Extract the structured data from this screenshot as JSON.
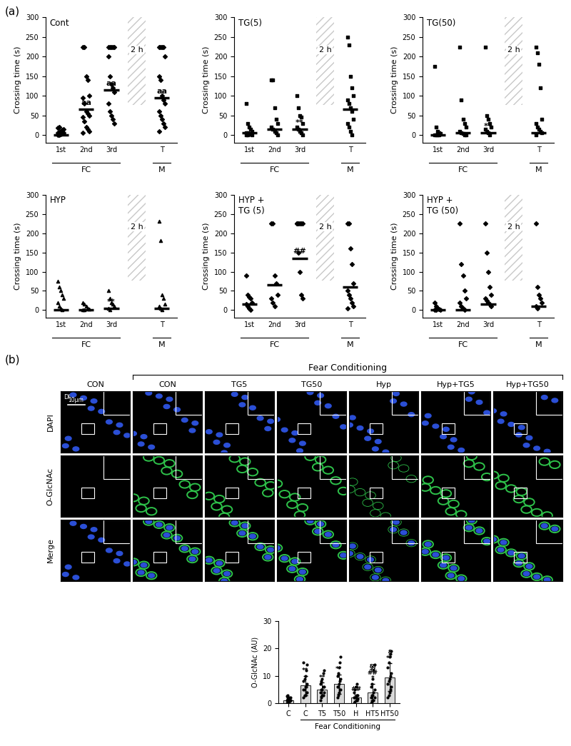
{
  "panel_labels": [
    "(a)",
    "(b)"
  ],
  "chart_data": [
    {
      "type": "scatter",
      "title": "Cont",
      "ylabel": "Crossing time (s)",
      "categories": [
        "1st",
        "2nd",
        "3rd",
        null,
        "T"
      ],
      "points": [
        [
          0,
          0,
          2,
          3,
          5,
          5,
          8,
          10,
          12,
          15,
          18,
          20,
          5,
          3
        ],
        [
          225,
          225,
          150,
          140,
          100,
          95,
          80,
          60,
          55,
          50,
          45,
          35,
          20,
          15,
          10,
          5
        ],
        [
          225,
          225,
          225,
          225,
          225,
          200,
          150,
          130,
          120,
          110,
          80,
          60,
          50,
          40,
          30
        ],
        [],
        [
          225,
          225,
          225,
          225,
          200,
          150,
          140,
          100,
          90,
          80,
          60,
          50,
          40,
          30,
          20,
          10
        ]
      ],
      "means": [
        0,
        65,
        115,
        null,
        95
      ],
      "annotations": [
        null,
        "aa",
        "aa",
        null,
        "aa"
      ],
      "gap_label": "2 h",
      "groups": [
        {
          "label": "FC",
          "categories": [
            "1st",
            "2nd",
            "3rd"
          ]
        },
        {
          "label": "M",
          "categories": [
            "T"
          ]
        }
      ],
      "ylim": [
        -20,
        300
      ],
      "yticks": [
        0,
        50,
        100,
        150,
        200,
        250,
        300
      ],
      "marker": "diamond",
      "color": "#000000"
    },
    {
      "type": "scatter",
      "title": "TG(5)",
      "ylabel": "Crossing time (s)",
      "categories": [
        "1st",
        "2nd",
        "3rd",
        null,
        "T"
      ],
      "points": [
        [
          80,
          30,
          20,
          15,
          10,
          5,
          5,
          3,
          2,
          0,
          0,
          0
        ],
        [
          140,
          140,
          70,
          40,
          30,
          20,
          15,
          10,
          5,
          0
        ],
        [
          100,
          70,
          50,
          45,
          30,
          20,
          15,
          10,
          5,
          0
        ],
        [],
        [
          250,
          230,
          150,
          120,
          100,
          90,
          80,
          70,
          60,
          40,
          30,
          20,
          10,
          0
        ]
      ],
      "means": [
        5,
        15,
        15,
        null,
        65
      ],
      "annotations": [
        null,
        null,
        "**",
        null,
        null
      ],
      "gap_label": "2 h",
      "groups": [
        {
          "label": "FC",
          "categories": [
            "1st",
            "2nd",
            "3rd"
          ]
        },
        {
          "label": "M",
          "categories": [
            "T"
          ]
        }
      ],
      "ylim": [
        -20,
        300
      ],
      "yticks": [
        0,
        50,
        100,
        150,
        200,
        250,
        300
      ],
      "marker": "square",
      "color": "#000000"
    },
    {
      "type": "scatter",
      "title": "TG(50)",
      "ylabel": "Crossing time (s)",
      "categories": [
        "1st",
        "2nd",
        "3rd",
        null,
        "T"
      ],
      "points": [
        [
          175,
          20,
          10,
          5,
          3,
          0,
          0,
          0,
          0
        ],
        [
          225,
          90,
          40,
          30,
          20,
          10,
          5,
          3,
          0,
          0
        ],
        [
          225,
          50,
          40,
          30,
          20,
          15,
          10,
          5,
          0
        ],
        [],
        [
          225,
          210,
          180,
          120,
          40,
          30,
          20,
          15,
          10,
          5,
          0
        ]
      ],
      "means": [
        0,
        5,
        5,
        null,
        5
      ],
      "annotations": [
        null,
        null,
        "**",
        null,
        null
      ],
      "gap_label": "2 h",
      "groups": [
        {
          "label": "FC",
          "categories": [
            "1st",
            "2nd",
            "3rd"
          ]
        },
        {
          "label": "M",
          "categories": [
            "T"
          ]
        }
      ],
      "ylim": [
        -20,
        300
      ],
      "yticks": [
        0,
        50,
        100,
        150,
        200,
        250,
        300
      ],
      "marker": "square",
      "color": "#000000"
    },
    {
      "type": "scatter",
      "title": "HYP",
      "ylabel": "Crossing time (s)",
      "categories": [
        "1st",
        "2nd",
        "3rd",
        null,
        "T"
      ],
      "points": [
        [
          75,
          60,
          50,
          40,
          30,
          20,
          10,
          5,
          0
        ],
        [
          20,
          15,
          10,
          5,
          3,
          0,
          0
        ],
        [
          50,
          30,
          20,
          15,
          10,
          5,
          0
        ],
        [],
        [
          230,
          180,
          40,
          30,
          15,
          10,
          5,
          0
        ]
      ],
      "means": [
        0,
        0,
        5,
        null,
        5
      ],
      "annotations": [
        null,
        null,
        "**",
        null,
        null
      ],
      "gap_label": "2 h",
      "groups": [
        {
          "label": "FC",
          "categories": [
            "1st",
            "2nd",
            "3rd"
          ]
        },
        {
          "label": "M",
          "categories": [
            "T"
          ]
        }
      ],
      "ylim": [
        -20,
        300
      ],
      "yticks": [
        0,
        50,
        100,
        150,
        200,
        250,
        300
      ],
      "marker": "triangle",
      "color": "#000000"
    },
    {
      "type": "scatter",
      "title": "HYP +\nTG (5)",
      "ylabel": "Crossing time (s)",
      "categories": [
        "1st",
        "2nd",
        "3rd",
        null,
        "T"
      ],
      "points": [
        [
          90,
          40,
          35,
          30,
          20,
          15,
          10,
          5,
          0
        ],
        [
          225,
          225,
          90,
          70,
          40,
          30,
          20,
          10
        ],
        [
          225,
          225,
          225,
          225,
          225,
          225,
          150,
          100,
          40,
          30
        ],
        [],
        [
          225,
          225,
          160,
          120,
          70,
          50,
          40,
          30,
          20,
          10,
          5
        ]
      ],
      "means": [
        15,
        65,
        135,
        null,
        60
      ],
      "annotations": [
        null,
        null,
        "##",
        null,
        null
      ],
      "gap_label": "2 h",
      "groups": [
        {
          "label": "FC",
          "categories": [
            "1st",
            "2nd",
            "3rd"
          ]
        },
        {
          "label": "M",
          "categories": [
            "T"
          ]
        }
      ],
      "ylim": [
        -20,
        300
      ],
      "yticks": [
        0,
        50,
        100,
        150,
        200,
        250,
        300
      ],
      "marker": "diamond",
      "color": "#000000"
    },
    {
      "type": "scatter",
      "title": "HYP +\nTG (50)",
      "ylabel": "Crossing time (s)",
      "categories": [
        "1st",
        "2nd",
        "3rd",
        null,
        "T"
      ],
      "points": [
        [
          20,
          10,
          5,
          3,
          0,
          0,
          0
        ],
        [
          225,
          120,
          90,
          50,
          30,
          20,
          10,
          5,
          0
        ],
        [
          225,
          150,
          100,
          60,
          40,
          30,
          25,
          20,
          15,
          10
        ],
        [],
        [
          225,
          60,
          40,
          30,
          20,
          10,
          5
        ]
      ],
      "means": [
        0,
        0,
        15,
        null,
        10
      ],
      "annotations": [
        null,
        null,
        null,
        null,
        null
      ],
      "gap_label": "2 h",
      "groups": [
        {
          "label": "FC",
          "categories": [
            "1st",
            "2nd",
            "3rd"
          ]
        },
        {
          "label": "M",
          "categories": [
            "T"
          ]
        }
      ],
      "ylim": [
        -20,
        300
      ],
      "yticks": [
        0,
        50,
        100,
        150,
        200,
        250,
        300
      ],
      "marker": "diamond",
      "color": "#000000"
    },
    {
      "type": "bar",
      "ylabel": "O-GlcNAc (AU)",
      "categories": [
        "C",
        "C",
        "T5",
        "T50",
        "H",
        "HT5",
        "HT50"
      ],
      "values": [
        1.0,
        6.5,
        5.0,
        7.0,
        2.0,
        4.0,
        9.5
      ],
      "errors": [
        1.0,
        3.5,
        2.5,
        3.5,
        1.2,
        3.0,
        5.0
      ],
      "points": [
        [
          0,
          0.5,
          0.5,
          1,
          1,
          1,
          1.5,
          1.5,
          2,
          2,
          2.5,
          3,
          0,
          0.5,
          1
        ],
        [
          2,
          3,
          3,
          4,
          4,
          5,
          5,
          6,
          6,
          7,
          8,
          9,
          10,
          12,
          14,
          15
        ],
        [
          1,
          2,
          3,
          3,
          4,
          4,
          5,
          5,
          6,
          6,
          7,
          8,
          9,
          11,
          12
        ],
        [
          2,
          3,
          4,
          5,
          5,
          6,
          6,
          7,
          8,
          9,
          10,
          11,
          13,
          15,
          17
        ],
        [
          0,
          0.5,
          1,
          1,
          1.5,
          2,
          2,
          2.5,
          3,
          3,
          4,
          5,
          6,
          7
        ],
        [
          0,
          0.5,
          1,
          1,
          2,
          2,
          3,
          3,
          4,
          5,
          6,
          7,
          9,
          12,
          14
        ],
        [
          2,
          3,
          4,
          5,
          6,
          7,
          8,
          9,
          10,
          11,
          13,
          15,
          17,
          18,
          19
        ]
      ],
      "annotations": [
        null,
        [
          "**"
        ],
        [
          "**"
        ],
        [
          "**"
        ],
        [
          "##"
        ],
        [
          "§§",
          "##",
          "*"
        ],
        [
          "§",
          "**"
        ]
      ],
      "groups": [
        {
          "label": "Fear Conditioning",
          "members": [
            false,
            true,
            true,
            true,
            true,
            true,
            true
          ]
        }
      ],
      "ylim": [
        0,
        30
      ],
      "yticks": [
        0,
        10,
        20,
        30
      ],
      "color": "#d9d9d9"
    }
  ],
  "image_grid": {
    "header": "Fear Conditioning",
    "columns": [
      "CON",
      "CON",
      "TG5",
      "TG50",
      "Hyp",
      "Hyp+TG5",
      "Hyp+TG50"
    ],
    "header_members": [
      false,
      true,
      true,
      true,
      true,
      true,
      true
    ],
    "rows": [
      "DAPI",
      "O-GlcNAc",
      "Merge"
    ],
    "region": "DI",
    "scale_bar": "10μm"
  }
}
